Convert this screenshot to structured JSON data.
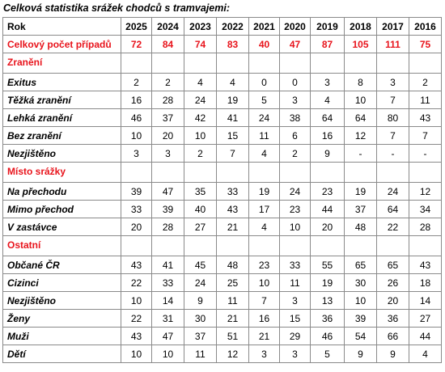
{
  "caption": "Celková statistika srážek chodců s tramvajemi:",
  "header": {
    "label": "Rok",
    "years": [
      "2025",
      "2024",
      "2023",
      "2022",
      "2021",
      "2020",
      "2019",
      "2018",
      "2017",
      "2016"
    ]
  },
  "total": {
    "label": "Celkový počet případů",
    "values": [
      "72",
      "84",
      "74",
      "83",
      "40",
      "47",
      "87",
      "105",
      "111",
      "75"
    ]
  },
  "sections": [
    {
      "title": "Zranění",
      "rows": [
        {
          "label": "Exitus",
          "values": [
            "2",
            "2",
            "4",
            "4",
            "0",
            "0",
            "3",
            "8",
            "3",
            "2"
          ]
        },
        {
          "label": "Těžká zranění",
          "values": [
            "16",
            "28",
            "24",
            "19",
            "5",
            "3",
            "4",
            "10",
            "7",
            "11"
          ]
        },
        {
          "label": "Lehká zranění",
          "values": [
            "46",
            "37",
            "42",
            "41",
            "24",
            "38",
            "64",
            "64",
            "80",
            "43"
          ]
        },
        {
          "label": "Bez zranění",
          "values": [
            "10",
            "20",
            "10",
            "15",
            "11",
            "6",
            "16",
            "12",
            "7",
            "7"
          ]
        },
        {
          "label": "Nezjištěno",
          "values": [
            "3",
            "3",
            "2",
            "7",
            "4",
            "2",
            "9",
            "-",
            "-",
            "-"
          ]
        }
      ]
    },
    {
      "title": "Místo srážky",
      "rows": [
        {
          "label": "Na přechodu",
          "values": [
            "39",
            "47",
            "35",
            "33",
            "19",
            "24",
            "23",
            "19",
            "24",
            "12"
          ]
        },
        {
          "label": "Mimo přechod",
          "values": [
            "33",
            "39",
            "40",
            "43",
            "17",
            "23",
            "44",
            "37",
            "64",
            "34"
          ]
        },
        {
          "label": "V zastávce",
          "values": [
            "20",
            "28",
            "27",
            "21",
            "4",
            "10",
            "20",
            "48",
            "22",
            "28"
          ]
        }
      ]
    },
    {
      "title": "Ostatní",
      "rows": [
        {
          "label": "Občané ČR",
          "values": [
            "43",
            "41",
            "45",
            "48",
            "23",
            "33",
            "55",
            "65",
            "65",
            "43"
          ]
        },
        {
          "label": "Cizinci",
          "values": [
            "22",
            "33",
            "24",
            "25",
            "10",
            "11",
            "19",
            "30",
            "26",
            "18"
          ]
        },
        {
          "label": "Nezjištěno",
          "values": [
            "10",
            "14",
            "9",
            "11",
            "7",
            "3",
            "13",
            "10",
            "20",
            "14"
          ]
        },
        {
          "label": "Ženy",
          "values": [
            "22",
            "31",
            "30",
            "21",
            "16",
            "15",
            "36",
            "39",
            "36",
            "27"
          ]
        },
        {
          "label": "Muži",
          "values": [
            "43",
            "47",
            "37",
            "51",
            "21",
            "29",
            "46",
            "54",
            "66",
            "44"
          ]
        },
        {
          "label": "Dětí",
          "values": [
            "10",
            "10",
            "11",
            "12",
            "3",
            "3",
            "5",
            "9",
            "9",
            "4"
          ]
        }
      ]
    }
  ],
  "colors": {
    "accent_red": "#e8141c",
    "border": "#8a8a8a"
  }
}
